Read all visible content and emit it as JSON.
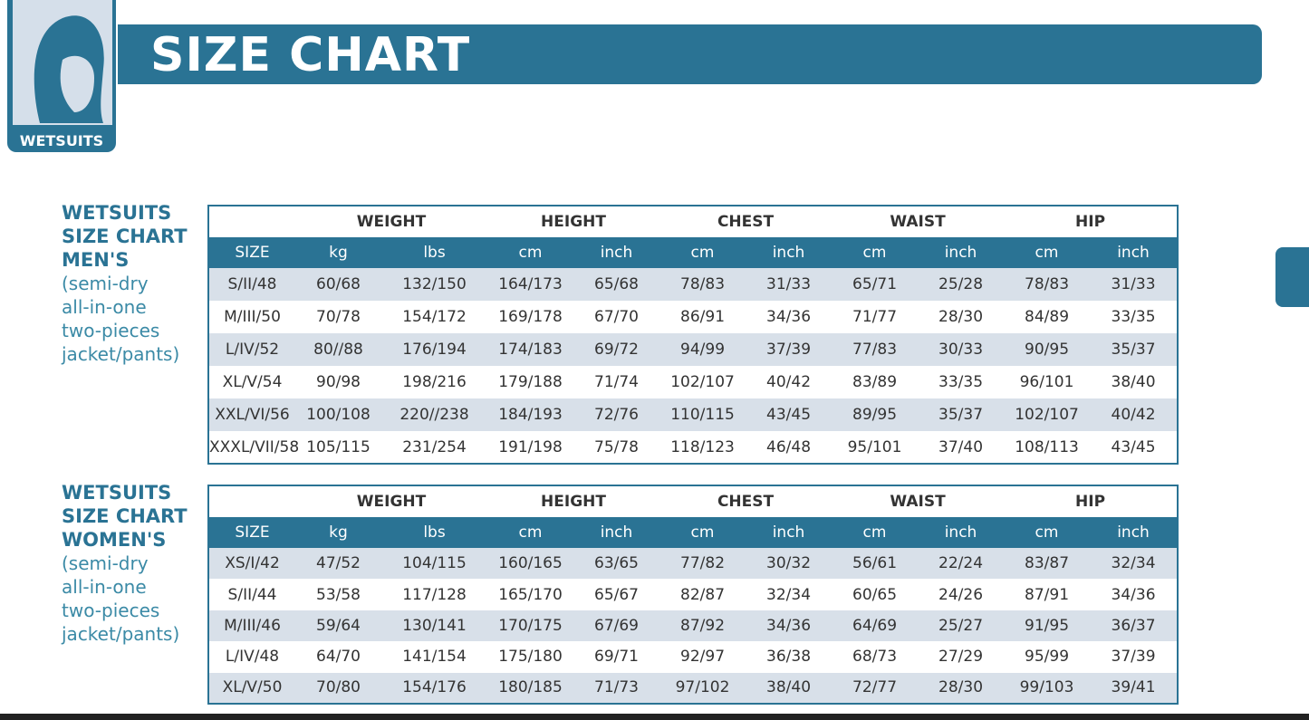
{
  "header": {
    "badge": "WETSUITS",
    "title": "SIZE CHART"
  },
  "sections": [
    {
      "label": {
        "title": [
          "WETSUITS",
          "SIZE CHART",
          "MEN'S"
        ],
        "notes": [
          "(semi-dry",
          "all-in-one",
          "two-pieces",
          "jacket/pants)"
        ]
      },
      "table": {
        "groups": [
          "WEIGHT",
          "HEIGHT",
          "CHEST",
          "WAIST",
          "HIP"
        ],
        "columns": [
          "SIZE",
          "kg",
          "lbs",
          "cm",
          "inch",
          "cm",
          "inch",
          "cm",
          "inch",
          "cm",
          "inch"
        ],
        "rows": [
          [
            "S/II/48",
            "60/68",
            "132/150",
            "164/173",
            "65/68",
            "78/83",
            "31/33",
            "65/71",
            "25/28",
            "78/83",
            "31/33"
          ],
          [
            "M/III/50",
            "70/78",
            "154/172",
            "169/178",
            "67/70",
            "86/91",
            "34/36",
            "71/77",
            "28/30",
            "84/89",
            "33/35"
          ],
          [
            "L/IV/52",
            "80//88",
            "176/194",
            "174/183",
            "69/72",
            "94/99",
            "37/39",
            "77/83",
            "30/33",
            "90/95",
            "35/37"
          ],
          [
            "XL/V/54",
            "90/98",
            "198/216",
            "179/188",
            "71/74",
            "102/107",
            "40/42",
            "83/89",
            "33/35",
            "96/101",
            "38/40"
          ],
          [
            "XXL/VI/56",
            "100/108",
            "220//238",
            "184/193",
            "72/76",
            "110/115",
            "43/45",
            "89/95",
            "35/37",
            "102/107",
            "40/42"
          ],
          [
            "XXXL/VII/58",
            "105/115",
            "231/254",
            "191/198",
            "75/78",
            "118/123",
            "46/48",
            "95/101",
            "37/40",
            "108/113",
            "43/45"
          ]
        ]
      }
    },
    {
      "label": {
        "title": [
          "WETSUITS",
          "SIZE CHART",
          "WOMEN'S"
        ],
        "notes": [
          "(semi-dry",
          "all-in-one",
          "two-pieces",
          "jacket/pants)"
        ]
      },
      "table": {
        "groups": [
          "WEIGHT",
          "HEIGHT",
          "CHEST",
          "WAIST",
          "HIP"
        ],
        "columns": [
          "SIZE",
          "kg",
          "lbs",
          "cm",
          "inch",
          "cm",
          "inch",
          "cm",
          "inch",
          "cm",
          "inch"
        ],
        "rows": [
          [
            "XS/I/42",
            "47/52",
            "104/115",
            "160/165",
            "63/65",
            "77/82",
            "30/32",
            "56/61",
            "22/24",
            "83/87",
            "32/34"
          ],
          [
            "S/II/44",
            "53/58",
            "117/128",
            "165/170",
            "65/67",
            "82/87",
            "32/34",
            "60/65",
            "24/26",
            "87/91",
            "34/36"
          ],
          [
            "M/III/46",
            "59/64",
            "130/141",
            "170/175",
            "67/69",
            "87/92",
            "34/36",
            "64/69",
            "25/27",
            "91/95",
            "36/37"
          ],
          [
            "L/IV/48",
            "64/70",
            "141/154",
            "175/180",
            "69/71",
            "92/97",
            "36/38",
            "68/73",
            "27/29",
            "95/99",
            "37/39"
          ],
          [
            "XL/V/50",
            "70/80",
            "154/176",
            "180/185",
            "71/73",
            "97/102",
            "38/40",
            "72/77",
            "28/30",
            "99/103",
            "39/41"
          ]
        ]
      }
    }
  ]
}
